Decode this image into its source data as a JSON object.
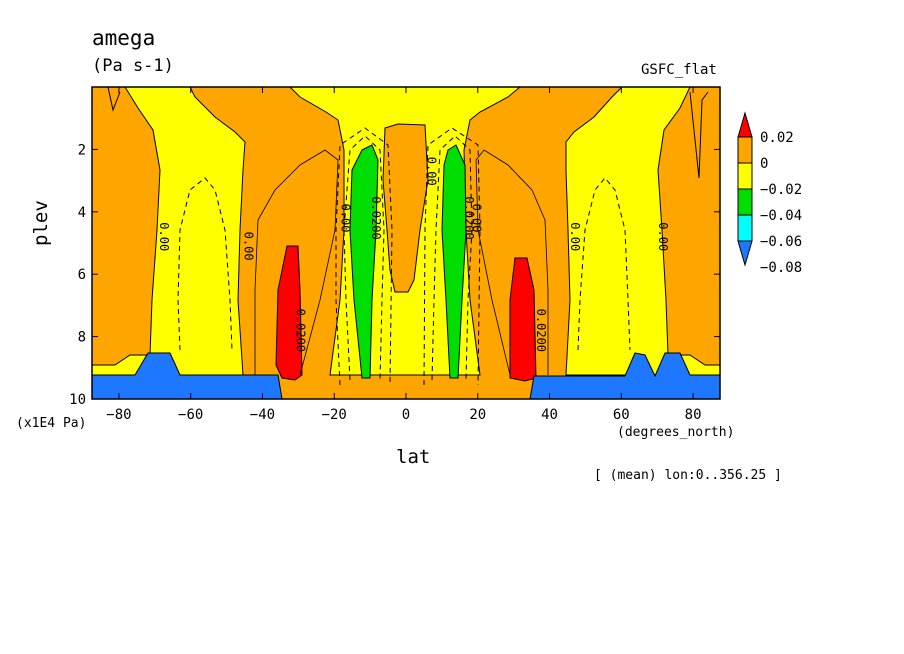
{
  "title": "amega",
  "units": "(Pa s-1)",
  "source": "GSFC_flat",
  "y_scale_note": "(x1E4 Pa)",
  "x_unit_note": "(degrees_north)",
  "footer": "[ (mean) lon:0..356.25 ]",
  "colors": {
    "red": "#ff0000",
    "orange": "#ffa500",
    "yellow": "#ffff00",
    "green": "#00dd00",
    "cyan": "#00ffff",
    "blue": "#1e78ff"
  },
  "chart_data": {
    "type": "contour",
    "title": "amega",
    "units": "(Pa s-1)",
    "xlabel": "lat",
    "ylabel": "plev",
    "xlim": [
      -87.5,
      87.5
    ],
    "ylim": [
      10,
      0
    ],
    "x_ticks": [
      -80,
      -60,
      -40,
      -20,
      0,
      20,
      40,
      60,
      80
    ],
    "y_ticks": [
      2,
      4,
      6,
      8,
      10
    ],
    "colorbar": {
      "labels": [
        "0.02",
        "0",
        "-0.02",
        "-0.04",
        "-0.06",
        "-0.08"
      ],
      "levels": [
        0.02,
        0,
        -0.02,
        -0.04,
        -0.06,
        -0.08
      ],
      "colors": [
        "#ff0000",
        "#ffa500",
        "#ffff00",
        "#00dd00",
        "#00ffff",
        "#1e78ff"
      ]
    },
    "contour_labels": [
      {
        "text": "0.00",
        "lat": -68.5,
        "plev": 4.8
      },
      {
        "text": "0.00",
        "lat": -45,
        "plev": 5.1
      },
      {
        "text": "0.0200",
        "lat": -30.5,
        "plev": 7.8
      },
      {
        "text": "0.00",
        "lat": -18,
        "plev": 4.2
      },
      {
        "text": "0.0200",
        "lat": -9.5,
        "plev": 4.2
      },
      {
        "text": "0.00",
        "lat": 6,
        "plev": 2.7
      },
      {
        "text": "0.0200",
        "lat": 16.5,
        "plev": 4.2
      },
      {
        "text": "0.00",
        "lat": 18.5,
        "plev": 4.2
      },
      {
        "text": "0.0200",
        "lat": 36.5,
        "plev": 7.8
      },
      {
        "text": "0.00",
        "lat": 46,
        "plev": 4.8
      },
      {
        "text": "0.00",
        "lat": 70.5,
        "plev": 4.8
      }
    ]
  }
}
